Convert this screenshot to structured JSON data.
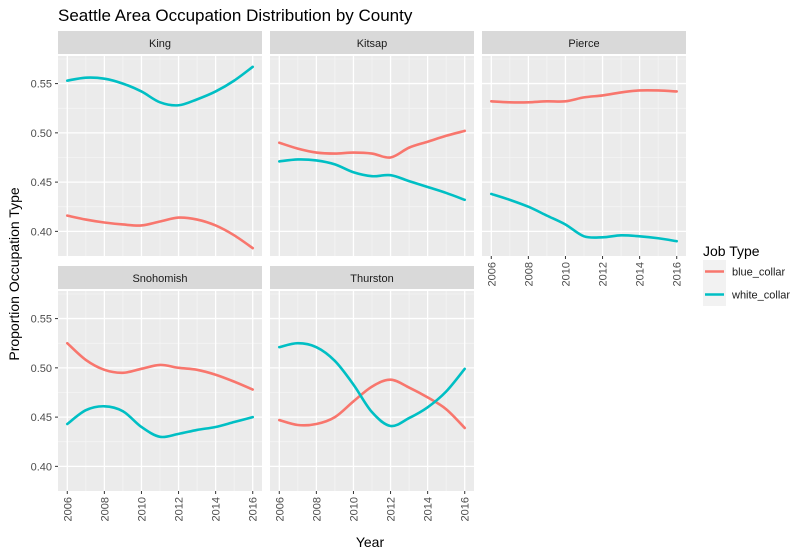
{
  "chart_data": {
    "type": "line",
    "title": "Seattle Area Occupation Distribution by County",
    "xlabel": "Year",
    "ylabel": "Proportion Occupation Type",
    "xlim": [
      2005.5,
      2016.5
    ],
    "ylim": [
      0.375,
      0.578
    ],
    "x_ticks": [
      "2006",
      "2008",
      "2010",
      "2012",
      "2014",
      "2016"
    ],
    "y_ticks": [
      "0.40",
      "0.45",
      "0.50",
      "0.55"
    ],
    "grid": true,
    "legend": {
      "title": "Job Type",
      "placement": "right",
      "entries": [
        {
          "name": "blue_collar",
          "color": "#F8766D"
        },
        {
          "name": "white_collar",
          "color": "#00BFC4"
        }
      ]
    },
    "x": [
      2006,
      2007,
      2008,
      2009,
      2010,
      2011,
      2012,
      2013,
      2014,
      2015,
      2016
    ],
    "panels": [
      {
        "name": "King",
        "series": [
          {
            "name": "blue_collar",
            "values": [
              0.416,
              0.412,
              0.409,
              0.407,
              0.406,
              0.41,
              0.414,
              0.412,
              0.406,
              0.396,
              0.383
            ]
          },
          {
            "name": "white_collar",
            "values": [
              0.553,
              0.556,
              0.555,
              0.55,
              0.542,
              0.531,
              0.528,
              0.534,
              0.542,
              0.553,
              0.567
            ]
          }
        ]
      },
      {
        "name": "Kitsap",
        "series": [
          {
            "name": "blue_collar",
            "values": [
              0.49,
              0.484,
              0.48,
              0.479,
              0.48,
              0.479,
              0.475,
              0.485,
              0.491,
              0.497,
              0.502
            ]
          },
          {
            "name": "white_collar",
            "values": [
              0.471,
              0.473,
              0.472,
              0.468,
              0.46,
              0.456,
              0.457,
              0.451,
              0.445,
              0.439,
              0.432
            ]
          }
        ]
      },
      {
        "name": "Pierce",
        "series": [
          {
            "name": "blue_collar",
            "values": [
              0.532,
              0.531,
              0.531,
              0.532,
              0.532,
              0.536,
              0.538,
              0.541,
              0.543,
              0.543,
              0.542
            ]
          },
          {
            "name": "white_collar",
            "values": [
              0.438,
              0.432,
              0.425,
              0.416,
              0.407,
              0.395,
              0.394,
              0.396,
              0.395,
              0.393,
              0.39
            ]
          }
        ]
      },
      {
        "name": "Snohomish",
        "series": [
          {
            "name": "blue_collar",
            "values": [
              0.525,
              0.508,
              0.498,
              0.495,
              0.499,
              0.503,
              0.5,
              0.498,
              0.493,
              0.486,
              0.478
            ]
          },
          {
            "name": "white_collar",
            "values": [
              0.443,
              0.457,
              0.461,
              0.456,
              0.44,
              0.43,
              0.433,
              0.437,
              0.44,
              0.445,
              0.45
            ]
          }
        ]
      },
      {
        "name": "Thurston",
        "series": [
          {
            "name": "blue_collar",
            "values": [
              0.447,
              0.442,
              0.443,
              0.45,
              0.466,
              0.481,
              0.488,
              0.48,
              0.47,
              0.458,
              0.439
            ]
          },
          {
            "name": "white_collar",
            "values": [
              0.521,
              0.525,
              0.521,
              0.507,
              0.483,
              0.455,
              0.441,
              0.449,
              0.46,
              0.476,
              0.499
            ]
          }
        ]
      }
    ]
  }
}
